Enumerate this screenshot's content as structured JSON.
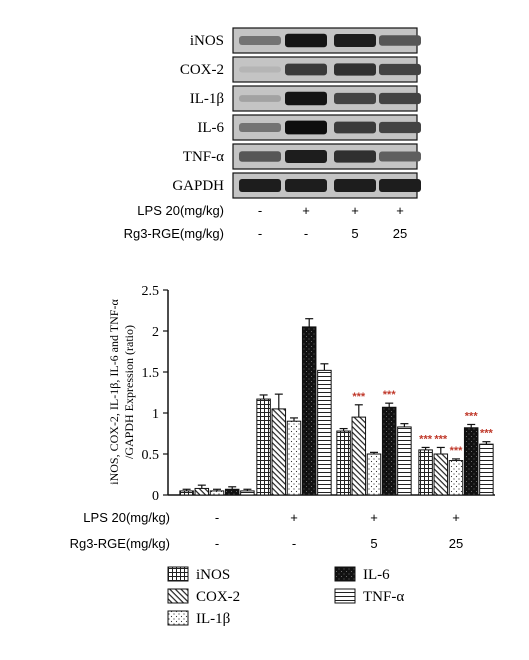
{
  "blot": {
    "proteins": [
      "iNOS",
      "COX-2",
      "IL-1β",
      "IL-6",
      "TNF-α",
      "GAPDH"
    ],
    "intensity": [
      [
        0.45,
        0.95,
        0.9,
        0.6
      ],
      [
        0.1,
        0.75,
        0.8,
        0.7
      ],
      [
        0.2,
        0.95,
        0.7,
        0.7
      ],
      [
        0.45,
        0.98,
        0.75,
        0.7
      ],
      [
        0.6,
        0.9,
        0.8,
        0.55
      ],
      [
        0.9,
        0.9,
        0.9,
        0.9
      ]
    ],
    "lps_label": "LPS 20(mg/kg)",
    "lps_values": [
      "-",
      "+",
      "+",
      "+"
    ],
    "rg3_label": "Rg3-RGE(mg/kg)",
    "rg3_values": [
      "-",
      "-",
      "5",
      "25"
    ]
  },
  "chart_data": {
    "type": "bar",
    "ylabel_line1": "iNOS, COX-2, IL-1β, IL-6 and TNF-α",
    "ylabel_line2": "/GAPDH Expression (ratio)",
    "ylim": [
      0,
      2.5
    ],
    "yticks": [
      "0",
      "0.5",
      "1",
      "1.5",
      "2",
      "2.5"
    ],
    "groups": [
      {
        "lps": "-",
        "rg3": "-"
      },
      {
        "lps": "+",
        "rg3": "-"
      },
      {
        "lps": "+",
        "rg3": "5"
      },
      {
        "lps": "+",
        "rg3": "25"
      }
    ],
    "series": [
      {
        "name": "iNOS",
        "pattern": "grid",
        "values": [
          0.05,
          1.17,
          0.78,
          0.55
        ],
        "errors": [
          0.02,
          0.05,
          0.03,
          0.03
        ],
        "marks": [
          "",
          "",
          "",
          "***"
        ]
      },
      {
        "name": "COX-2",
        "pattern": "diag",
        "values": [
          0.08,
          1.05,
          0.95,
          0.5
        ],
        "errors": [
          0.04,
          0.18,
          0.15,
          0.08
        ],
        "marks": [
          "",
          "",
          "***",
          "***"
        ]
      },
      {
        "name": "IL-1β",
        "pattern": "dots",
        "values": [
          0.05,
          0.9,
          0.5,
          0.42
        ],
        "errors": [
          0.02,
          0.04,
          0.02,
          0.02
        ],
        "marks": [
          "",
          "",
          "",
          "***"
        ]
      },
      {
        "name": "IL-6",
        "pattern": "solid",
        "values": [
          0.07,
          2.05,
          1.07,
          0.82
        ],
        "errors": [
          0.03,
          0.1,
          0.05,
          0.04
        ],
        "marks": [
          "",
          "",
          "***",
          "***"
        ]
      },
      {
        "name": "TNF-α",
        "pattern": "hlines",
        "values": [
          0.05,
          1.52,
          0.83,
          0.62
        ],
        "errors": [
          0.02,
          0.08,
          0.04,
          0.03
        ],
        "marks": [
          "",
          "",
          "",
          "***"
        ]
      }
    ],
    "lps_label": "LPS 20(mg/kg)",
    "rg3_label": "Rg3-RGE(mg/kg)",
    "legend": [
      {
        "name": "iNOS",
        "pattern": "grid"
      },
      {
        "name": "IL-6",
        "pattern": "solid"
      },
      {
        "name": "COX-2",
        "pattern": "diag"
      },
      {
        "name": "TNF-α",
        "pattern": "hlines"
      },
      {
        "name": "IL-1β",
        "pattern": "dots"
      }
    ]
  }
}
